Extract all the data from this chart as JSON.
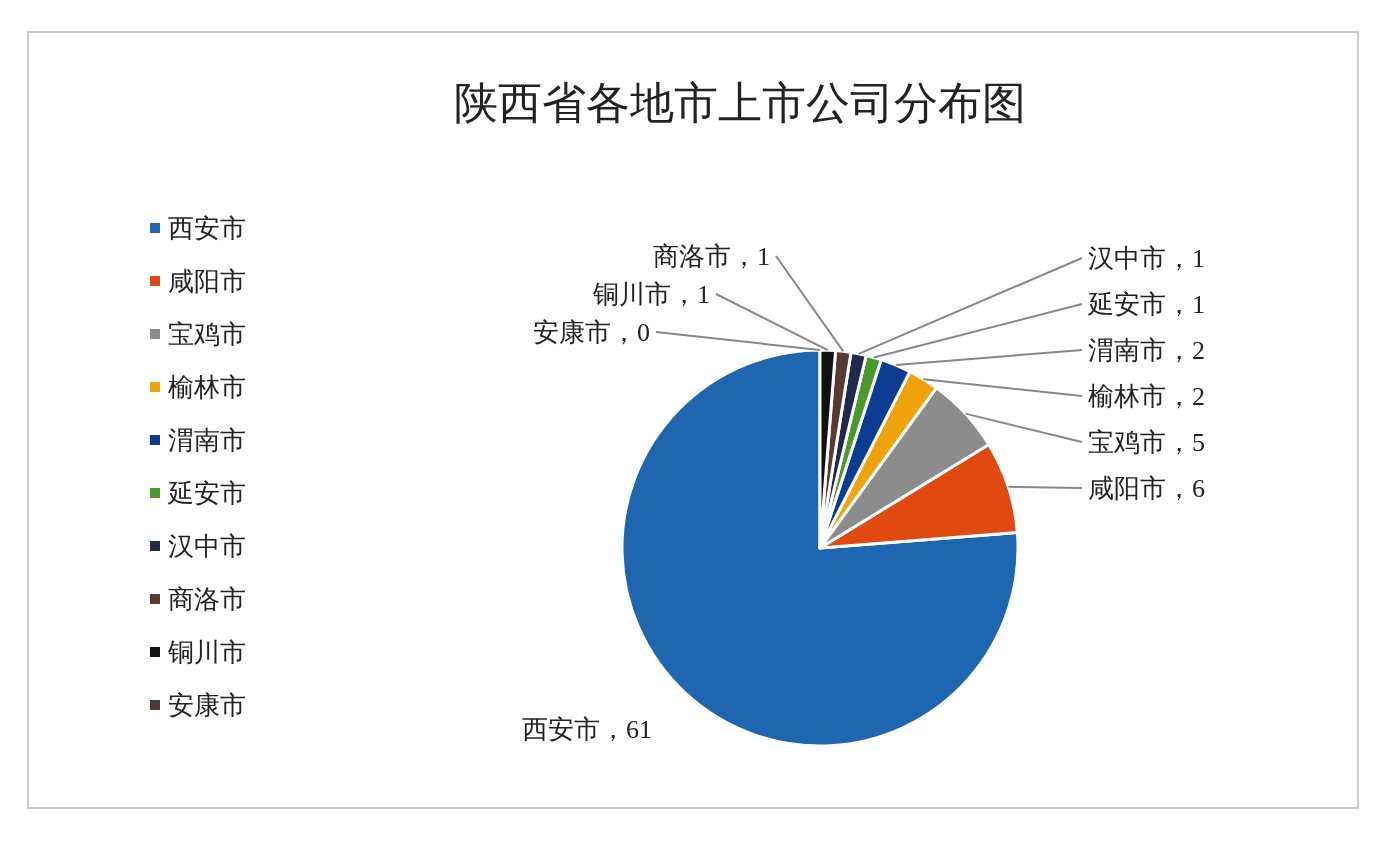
{
  "chart_data": {
    "type": "pie",
    "title": "陕西省各地市上市公司分布图",
    "categories": [
      "西安市",
      "咸阳市",
      "宝鸡市",
      "榆林市",
      "渭南市",
      "延安市",
      "汉中市",
      "商洛市",
      "铜川市",
      "安康市"
    ],
    "values": [
      61,
      6,
      5,
      2,
      2,
      1,
      1,
      1,
      1,
      0
    ],
    "colors": [
      "#1f66b0",
      "#e04a10",
      "#8c8c8c",
      "#f0a30a",
      "#0a3d91",
      "#4a9a2a",
      "#1e2a4a",
      "#5a3a30",
      "#111111",
      "#4a3a35"
    ],
    "value_labels": [
      "西安市，61",
      "咸阳市，6",
      "宝鸡市，5",
      "榆林市，2",
      "渭南市，2",
      "延安市，1",
      "汉中市，1",
      "商洛市，1",
      "铜川市，1",
      "安康市，0"
    ],
    "legend": "left"
  }
}
